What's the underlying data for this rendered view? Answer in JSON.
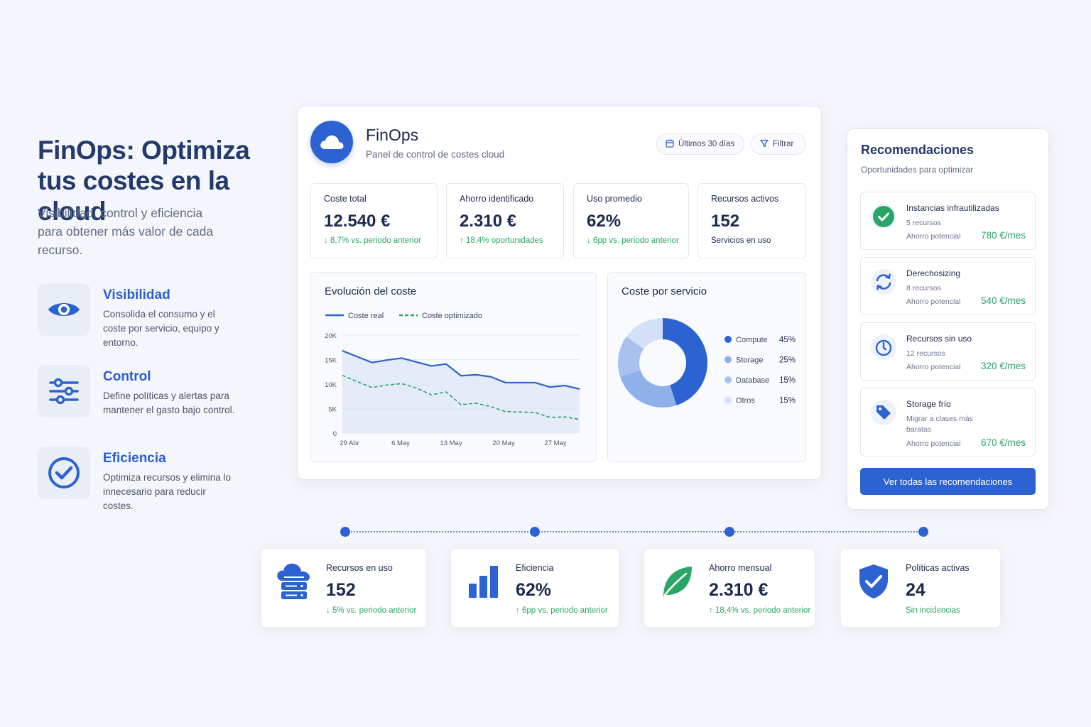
{
  "hero": {
    "title": "FinOps: Optimiza tus costes en la cloud",
    "subtitle": "Visibilidad, control y eficiencia para obtener más valor de cada recurso.",
    "features": [
      {
        "title": "Visibilidad",
        "desc": "Consolida el consumo y el coste por servicio, equipo y entorno.",
        "icon": "eye-icon"
      },
      {
        "title": "Control",
        "desc": "Define políticas y alertas para mantener el gasto bajo control.",
        "icon": "sliders-icon"
      },
      {
        "title": "Eficiencia",
        "desc": "Optimiza recursos y elimina lo innecesario para reducir costes.",
        "icon": "check-circle-icon"
      }
    ]
  },
  "app": {
    "title": "FinOps",
    "subtitle": "Panel de control de costes cloud",
    "date_range": "Últimos 30 días",
    "filter_label": "Filtrar"
  },
  "kpis": [
    {
      "label": "Coste total",
      "value": "12.540 €",
      "delta": "↓ 8,7% vs. periodo anterior"
    },
    {
      "label": "Ahorro identificado",
      "value": "2.310 €",
      "delta": "↑ 18,4% oportunidades"
    },
    {
      "label": "Uso promedio",
      "value": "62%",
      "delta": "↓ 6pp vs. periodo anterior"
    },
    {
      "label": "Recursos activos",
      "value": "152",
      "delta": "Servicios en uso"
    }
  ],
  "chart_data": [
    {
      "type": "area",
      "title": "Evolución del coste",
      "xlabel": "",
      "ylabel": "",
      "x_ticks": [
        "29 Abr",
        "6 May",
        "13 May",
        "20 May",
        "27 May"
      ],
      "y_ticks": [
        "0",
        "5K",
        "10K",
        "15K",
        "20K"
      ],
      "ylim": [
        0,
        20000
      ],
      "grid": true,
      "legend_position": "top-left",
      "series": [
        {
          "name": "Coste real",
          "color": "#2d63d1",
          "style": "solid",
          "values": [
            16800,
            15600,
            14400,
            14900,
            15300,
            14500,
            13700,
            14100,
            11700,
            11900,
            11500,
            10300,
            10300,
            10300,
            9400,
            9700,
            9000
          ]
        },
        {
          "name": "Coste optimizado",
          "color": "#2aa568",
          "style": "dashed",
          "values": [
            11800,
            10500,
            9300,
            9800,
            10100,
            9200,
            7800,
            8400,
            5800,
            6100,
            5400,
            4400,
            4300,
            4200,
            3200,
            3300,
            2800
          ]
        }
      ]
    },
    {
      "type": "pie",
      "title": "Coste por servicio",
      "legend_position": "right",
      "slices": [
        {
          "label": "Compute",
          "value": 45,
          "display": "45%",
          "color": "#2d63d1"
        },
        {
          "label": "Storage",
          "value": 25,
          "display": "25%",
          "color": "#8fb0e8"
        },
        {
          "label": "Database",
          "value": 15,
          "display": "15%",
          "color": "#a9c1ee"
        },
        {
          "label": "Otros",
          "value": 15,
          "display": "15%",
          "color": "#d3e0f7"
        }
      ]
    }
  ],
  "recommendations": {
    "title": "Recomendaciones",
    "subtitle": "Oportunidades para optimizar",
    "savings_label": "Ahorro potencial",
    "items": [
      {
        "name": "Instancias infrautilizadas",
        "detail": "5 recursos",
        "value": "780 €/mes",
        "icon": "check-circle-icon"
      },
      {
        "name": "Derechosizing",
        "detail": "8 recursos",
        "value": "540 €/mes",
        "icon": "refresh-icon"
      },
      {
        "name": "Recursos sin uso",
        "detail": "12 recursos",
        "value": "320 €/mes",
        "icon": "power-icon"
      },
      {
        "name": "Storage frío",
        "detail": "Migrar a clases más baratas",
        "value": "670 €/mes",
        "icon": "tag-icon"
      }
    ],
    "button": "Ver todas las recomendaciones"
  },
  "bottom": [
    {
      "label": "Recursos en uso",
      "value": "152",
      "delta": "↓ 5% vs. periodo anterior",
      "icon": "cloud-server-icon"
    },
    {
      "label": "Eficiencia",
      "value": "62%",
      "delta": "↑ 6pp vs. periodo anterior",
      "icon": "bar-chart-icon"
    },
    {
      "label": "Ahorro mensual",
      "value": "2.310 €",
      "delta": "↑ 18,4% vs. periodo anterior",
      "icon": "leaf-icon"
    },
    {
      "label": "Políticas activas",
      "value": "24",
      "delta": "Sin incidencias",
      "icon": "shield-check-icon"
    }
  ],
  "colors": {
    "accent": "#2d63d1",
    "positive": "#2aa568",
    "title": "#233a6b"
  }
}
